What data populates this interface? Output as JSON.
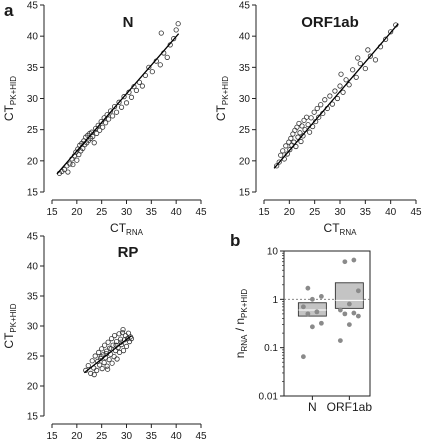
{
  "figure": {
    "panel_letters": [
      "a",
      "b"
    ]
  },
  "chart_data": [
    {
      "type": "scatter",
      "title": "N",
      "xlabel": {
        "main": "CT",
        "sub": "RNA"
      },
      "ylabel": {
        "main": "CT",
        "sub": "PK+HID"
      },
      "xlim": [
        15,
        45
      ],
      "ylim": [
        15,
        45
      ],
      "xticks": [
        15,
        20,
        25,
        30,
        35,
        40,
        45
      ],
      "yticks": [
        15,
        20,
        25,
        30,
        35,
        40,
        45
      ],
      "fit_line": {
        "x": [
          16,
          40.5
        ],
        "y": [
          17.9,
          40.4
        ]
      },
      "points": [
        [
          16.5,
          18.0
        ],
        [
          17.0,
          18.3
        ],
        [
          17.5,
          18.6
        ],
        [
          18.0,
          19.2
        ],
        [
          18.2,
          18.2
        ],
        [
          18.6,
          19.5
        ],
        [
          19.0,
          20.3
        ],
        [
          19.2,
          19.4
        ],
        [
          19.5,
          20.8
        ],
        [
          19.8,
          21.4
        ],
        [
          20.0,
          20.1
        ],
        [
          20.2,
          21.9
        ],
        [
          20.4,
          21.0
        ],
        [
          20.6,
          22.5
        ],
        [
          20.8,
          21.6
        ],
        [
          21.0,
          22.8
        ],
        [
          21.2,
          22.0
        ],
        [
          21.4,
          23.2
        ],
        [
          21.6,
          22.6
        ],
        [
          21.8,
          23.8
        ],
        [
          22.0,
          22.9
        ],
        [
          22.2,
          24.1
        ],
        [
          22.4,
          23.3
        ],
        [
          22.6,
          24.4
        ],
        [
          22.8,
          23.6
        ],
        [
          23.0,
          24.6
        ],
        [
          23.2,
          23.9
        ],
        [
          23.5,
          22.9
        ],
        [
          23.8,
          25.2
        ],
        [
          24.0,
          24.4
        ],
        [
          24.3,
          25.7
        ],
        [
          24.6,
          24.9
        ],
        [
          24.9,
          26.3
        ],
        [
          25.2,
          25.4
        ],
        [
          25.5,
          26.9
        ],
        [
          25.8,
          26.1
        ],
        [
          26.1,
          27.4
        ],
        [
          26.4,
          26.7
        ],
        [
          26.8,
          28.0
        ],
        [
          27.2,
          27.2
        ],
        [
          27.6,
          28.7
        ],
        [
          28.0,
          27.8
        ],
        [
          28.5,
          29.4
        ],
        [
          29.0,
          28.6
        ],
        [
          29.5,
          30.3
        ],
        [
          30.0,
          29.3
        ],
        [
          30.5,
          31.0
        ],
        [
          31.0,
          30.2
        ],
        [
          31.5,
          31.9
        ],
        [
          32.0,
          31.3
        ],
        [
          32.6,
          32.6
        ],
        [
          33.2,
          32.0
        ],
        [
          33.8,
          33.7
        ],
        [
          34.5,
          35.0
        ],
        [
          35.2,
          34.3
        ],
        [
          36.0,
          36.0
        ],
        [
          36.8,
          35.4
        ],
        [
          37.5,
          37.3
        ],
        [
          38.2,
          36.6
        ],
        [
          38.8,
          38.6
        ],
        [
          39.5,
          39.6
        ],
        [
          40.0,
          41.0
        ],
        [
          40.4,
          42.0
        ],
        [
          37.0,
          40.5
        ]
      ]
    },
    {
      "type": "scatter",
      "title": "ORF1ab",
      "xlabel": {
        "main": "CT",
        "sub": "RNA"
      },
      "ylabel": {
        "main": "CT",
        "sub": "PK+HID"
      },
      "xlim": [
        15,
        45
      ],
      "ylim": [
        15,
        45
      ],
      "xticks": [
        15,
        20,
        25,
        30,
        35,
        40,
        45
      ],
      "yticks": [
        15,
        20,
        25,
        30,
        35,
        40,
        45
      ],
      "fit_line": {
        "x": [
          17,
          41.5
        ],
        "y": [
          18.8,
          42.0
        ]
      },
      "points": [
        [
          17.5,
          19.2
        ],
        [
          18.0,
          19.8
        ],
        [
          18.3,
          20.9
        ],
        [
          18.7,
          21.6
        ],
        [
          19.0,
          20.3
        ],
        [
          19.3,
          22.4
        ],
        [
          19.6,
          21.1
        ],
        [
          19.9,
          23.0
        ],
        [
          20.1,
          21.8
        ],
        [
          20.3,
          23.6
        ],
        [
          20.5,
          22.5
        ],
        [
          20.7,
          24.3
        ],
        [
          20.9,
          23.0
        ],
        [
          21.1,
          24.9
        ],
        [
          21.3,
          22.3
        ],
        [
          21.5,
          25.4
        ],
        [
          21.7,
          23.8
        ],
        [
          21.9,
          26.0
        ],
        [
          22.1,
          24.5
        ],
        [
          22.3,
          23.1
        ],
        [
          22.5,
          25.6
        ],
        [
          22.7,
          24.0
        ],
        [
          22.9,
          26.5
        ],
        [
          23.1,
          25.0
        ],
        [
          23.4,
          27.0
        ],
        [
          23.7,
          25.8
        ],
        [
          24.0,
          24.6
        ],
        [
          24.3,
          26.9
        ],
        [
          24.6,
          25.5
        ],
        [
          24.9,
          27.8
        ],
        [
          25.2,
          26.3
        ],
        [
          25.5,
          28.4
        ],
        [
          25.8,
          27.0
        ],
        [
          26.2,
          29.0
        ],
        [
          26.6,
          27.6
        ],
        [
          27.0,
          29.8
        ],
        [
          27.5,
          28.4
        ],
        [
          28.0,
          30.4
        ],
        [
          28.5,
          29.1
        ],
        [
          29.0,
          31.2
        ],
        [
          29.5,
          30.0
        ],
        [
          30.0,
          32.0
        ],
        [
          30.6,
          31.0
        ],
        [
          31.2,
          33.0
        ],
        [
          31.8,
          32.2
        ],
        [
          32.5,
          34.6
        ],
        [
          33.2,
          33.4
        ],
        [
          34.0,
          35.6
        ],
        [
          35.0,
          34.8
        ],
        [
          36.0,
          36.8
        ],
        [
          37.0,
          36.2
        ],
        [
          38.0,
          38.3
        ],
        [
          39.0,
          39.5
        ],
        [
          40.0,
          40.7
        ],
        [
          41.0,
          41.8
        ],
        [
          35.5,
          37.8
        ],
        [
          33.5,
          36.5
        ],
        [
          30.2,
          33.9
        ]
      ]
    },
    {
      "type": "scatter",
      "title": "RP",
      "xlabel": {
        "main": "CT",
        "sub": "RNA"
      },
      "ylabel": {
        "main": "CT",
        "sub": "PK+HID"
      },
      "xlim": [
        15,
        45
      ],
      "ylim": [
        15,
        45
      ],
      "xticks": [
        15,
        20,
        25,
        30,
        35,
        40,
        45
      ],
      "yticks": [
        15,
        20,
        25,
        30,
        35,
        40,
        45
      ],
      "fit_line": {
        "x": [
          21.5,
          31
        ],
        "y": [
          22.2,
          28.4
        ]
      },
      "points": [
        [
          21.8,
          22.6
        ],
        [
          22.3,
          23.4
        ],
        [
          22.8,
          22.1
        ],
        [
          23.1,
          24.2
        ],
        [
          23.4,
          23.0
        ],
        [
          23.7,
          25.0
        ],
        [
          24.0,
          22.6
        ],
        [
          24.2,
          24.1
        ],
        [
          24.4,
          25.6
        ],
        [
          24.6,
          23.5
        ],
        [
          24.8,
          24.6
        ],
        [
          25.0,
          26.2
        ],
        [
          25.1,
          22.9
        ],
        [
          25.3,
          25.2
        ],
        [
          25.5,
          23.9
        ],
        [
          25.6,
          26.8
        ],
        [
          25.8,
          24.7
        ],
        [
          26.0,
          25.8
        ],
        [
          26.1,
          23.3
        ],
        [
          26.3,
          27.3
        ],
        [
          26.5,
          24.4
        ],
        [
          26.6,
          26.3
        ],
        [
          26.8,
          25.3
        ],
        [
          27.0,
          27.9
        ],
        [
          27.1,
          23.8
        ],
        [
          27.3,
          26.8
        ],
        [
          27.5,
          24.9
        ],
        [
          27.6,
          28.4
        ],
        [
          27.8,
          25.9
        ],
        [
          28.0,
          27.4
        ],
        [
          28.1,
          24.5
        ],
        [
          28.3,
          26.4
        ],
        [
          28.5,
          28.7
        ],
        [
          28.6,
          25.6
        ],
        [
          28.8,
          27.8
        ],
        [
          29.0,
          26.9
        ],
        [
          29.2,
          28.9
        ],
        [
          29.4,
          25.9
        ],
        [
          29.6,
          27.7
        ],
        [
          29.8,
          28.4
        ],
        [
          30.0,
          26.6
        ],
        [
          30.2,
          27.9
        ],
        [
          30.4,
          28.8
        ],
        [
          30.6,
          27.4
        ],
        [
          30.8,
          28.2
        ],
        [
          31.0,
          27.9
        ],
        [
          26.9,
          26.2
        ],
        [
          25.9,
          25.4
        ],
        [
          24.9,
          24.9
        ],
        [
          28.9,
          27.3
        ],
        [
          27.9,
          26.8
        ],
        [
          26.2,
          22.8
        ],
        [
          23.5,
          21.9
        ],
        [
          29.3,
          29.4
        ]
      ]
    },
    {
      "type": "box",
      "categories": [
        "N",
        "ORF1ab"
      ],
      "ylabel": {
        "main": "n",
        "sub1": "RNA",
        "mid": " / n",
        "sub2": "PK+HID"
      },
      "yscale": "log",
      "ylim": [
        0.01,
        10
      ],
      "yticks": [
        "0.01",
        "0.1",
        "1",
        "10"
      ],
      "reference_line": 1,
      "boxes": [
        {
          "q1": 0.45,
          "median": 0.6,
          "q3": 0.85
        },
        {
          "q1": 0.65,
          "median": 0.95,
          "q3": 2.2
        }
      ],
      "points": [
        [
          0.065,
          0.27,
          0.32,
          0.5,
          0.55,
          0.7,
          1.0,
          1.15,
          1.7
        ],
        [
          0.14,
          0.3,
          0.45,
          0.5,
          0.52,
          0.6,
          0.8,
          1.5,
          6.0,
          6.5
        ]
      ]
    }
  ]
}
